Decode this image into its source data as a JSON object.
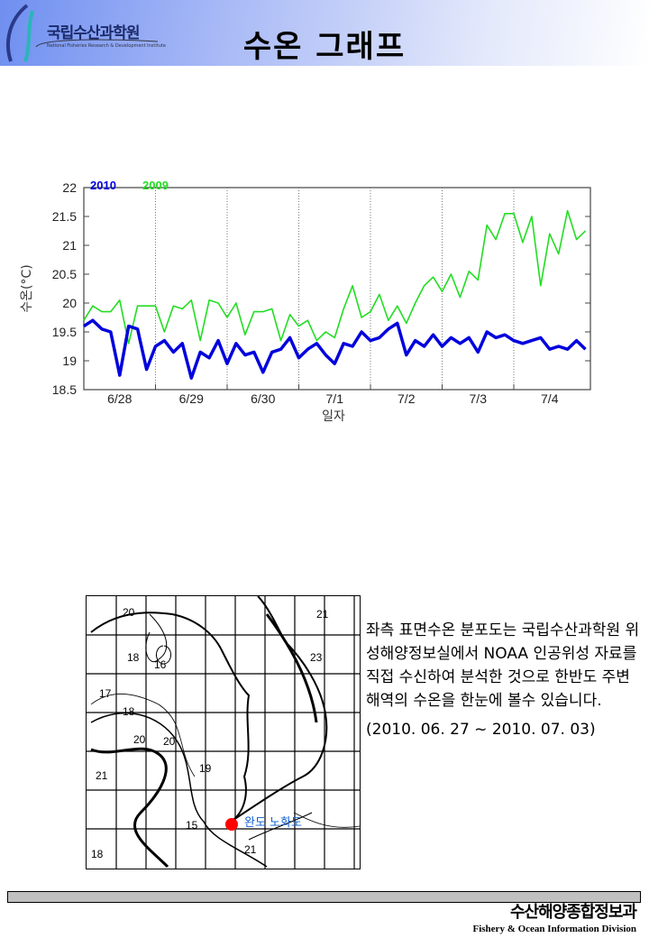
{
  "header": {
    "logo_text": "국립수산과학원",
    "logo_sub": "National Fisheries Research & Development Institute",
    "title": "수온 그래프"
  },
  "chart_data": {
    "type": "line",
    "xlabel": "일자",
    "ylabel": "수온(°C)",
    "ylim": [
      18.5,
      22
    ],
    "yticks": [
      "18.5",
      "19",
      "19.5",
      "20",
      "20.5",
      "21",
      "21.5",
      "22"
    ],
    "xtick_labels": [
      "6/28",
      "6/29",
      "6/30",
      "7/1",
      "7/2",
      "7/3",
      "7/4"
    ],
    "grid": "vertical dotted lines at day boundaries",
    "legend_placement": "top-left",
    "x": [
      "6/28 00",
      "6/28 03",
      "6/28 06",
      "6/28 09",
      "6/28 12",
      "6/28 15",
      "6/28 18",
      "6/28 21",
      "6/29 00",
      "6/29 03",
      "6/29 06",
      "6/29 09",
      "6/29 12",
      "6/29 15",
      "6/29 18",
      "6/29 21",
      "6/30 00",
      "6/30 03",
      "6/30 06",
      "6/30 09",
      "6/30 12",
      "6/30 15",
      "6/30 18",
      "6/30 21",
      "7/1 00",
      "7/1 03",
      "7/1 06",
      "7/1 09",
      "7/1 12",
      "7/1 15",
      "7/1 18",
      "7/1 21",
      "7/2 00",
      "7/2 03",
      "7/2 06",
      "7/2 09",
      "7/2 12",
      "7/2 15",
      "7/2 18",
      "7/2 21",
      "7/3 00",
      "7/3 03",
      "7/3 06",
      "7/3 09",
      "7/3 12",
      "7/3 15",
      "7/3 18",
      "7/3 21",
      "7/4 00",
      "7/4 03",
      "7/4 06",
      "7/4 09",
      "7/4 12",
      "7/4 15",
      "7/4 18",
      "7/4 21",
      "7/5 00"
    ],
    "series": [
      {
        "name": "2010",
        "color": "#0000dd",
        "values": [
          19.6,
          19.7,
          19.55,
          19.5,
          18.75,
          19.6,
          19.55,
          18.85,
          19.25,
          19.35,
          19.15,
          19.3,
          18.7,
          19.15,
          19.05,
          19.35,
          18.95,
          19.3,
          19.1,
          19.15,
          18.8,
          19.15,
          19.2,
          19.4,
          19.05,
          19.2,
          19.3,
          19.1,
          18.95,
          19.3,
          19.25,
          19.5,
          19.35,
          19.4,
          19.55,
          19.65,
          19.1,
          19.35,
          19.25,
          19.45,
          19.25,
          19.4,
          19.3,
          19.4,
          19.15,
          19.5,
          19.4,
          19.45,
          19.35,
          19.3,
          19.35,
          19.4,
          19.2,
          19.25,
          19.2,
          19.35,
          19.2
        ]
      },
      {
        "name": "2009",
        "color": "#22dd22",
        "values": [
          19.7,
          19.95,
          19.85,
          19.85,
          20.05,
          19.3,
          19.95,
          19.95,
          19.95,
          19.5,
          19.95,
          19.9,
          20.05,
          19.35,
          20.05,
          20.0,
          19.75,
          20.0,
          19.45,
          19.85,
          19.85,
          19.9,
          19.35,
          19.8,
          19.6,
          19.7,
          19.35,
          19.5,
          19.4,
          19.9,
          20.3,
          19.75,
          19.85,
          20.15,
          19.7,
          19.95,
          19.65,
          20.0,
          20.3,
          20.45,
          20.2,
          20.5,
          20.1,
          20.55,
          20.4,
          21.35,
          21.1,
          21.55,
          21.55,
          21.05,
          21.5,
          20.3,
          21.2,
          20.85,
          21.6,
          21.1,
          21.25
        ]
      }
    ]
  },
  "map": {
    "location_label": "완도 노화도",
    "marker_color": "#ff0000",
    "contour_labels": [
      "20",
      "18",
      "16",
      "17",
      "18",
      "20",
      "20",
      "21",
      "19",
      "15",
      "21",
      "18",
      "21",
      "23"
    ]
  },
  "description": {
    "text": "좌측 표면수온 분포도는 국립수산과학원 위성해양정보실에서 NOAA 인공위성 자료를 직접 수신하여 분석한 것으로  한반도 주변해역의 수온을 한눈에 볼수 있습니다.",
    "period": "(2010. 06. 27 ~ 2010. 07. 03)"
  },
  "footer": {
    "ko": "수산해양종합정보과",
    "en": "Fishery & Ocean Information Division"
  }
}
